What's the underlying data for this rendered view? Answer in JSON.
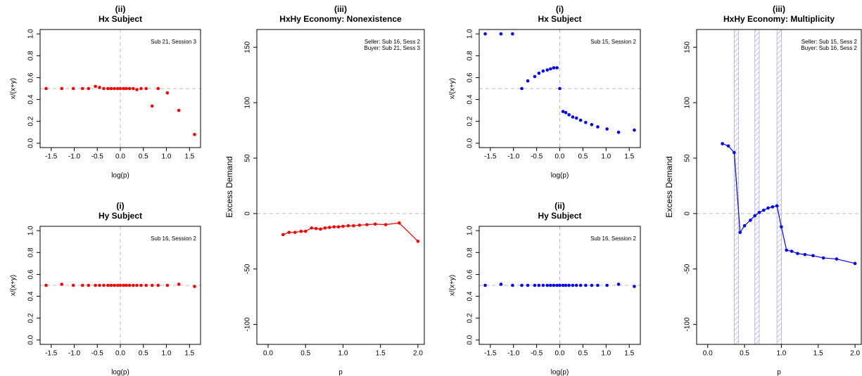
{
  "chart_data": [
    {
      "type": "scatter",
      "title": "(ii)",
      "subtitle": "Hx Subject",
      "annotation": [
        "Sub 21, Session 3"
      ],
      "xlabel": "log(p)",
      "ylabel": "x/(x+y)",
      "color": "#ff0000",
      "x": [
        -1.61,
        -1.27,
        -1.02,
        -0.82,
        -0.69,
        -0.54,
        -0.45,
        -0.36,
        -0.27,
        -0.2,
        -0.13,
        -0.06,
        0,
        0.07,
        0.13,
        0.2,
        0.28,
        0.36,
        0.45,
        0.56,
        0.69,
        0.82,
        1.02,
        1.27,
        1.61
      ],
      "values": [
        0.5,
        0.5,
        0.5,
        0.5,
        0.5,
        0.52,
        0.51,
        0.5,
        0.5,
        0.5,
        0.5,
        0.5,
        0.5,
        0.5,
        0.5,
        0.5,
        0.5,
        0.49,
        0.5,
        0.5,
        0.34,
        0.5,
        0.46,
        0.3,
        0.08
      ],
      "xlim": [
        -1.74,
        1.74
      ],
      "ylim": [
        -0.04,
        1.04
      ],
      "xticks": [
        {
          "value": -1.5,
          "label": "-1.5"
        },
        {
          "value": -1,
          "label": "-1.0"
        },
        -0.5,
        {
          "value": 0,
          "label": "0.0"
        },
        0.5,
        {
          "value": 1,
          "label": "1.0"
        },
        1.5
      ],
      "yticks": [
        {
          "value": 0,
          "label": "0.0"
        },
        0.2,
        0.4,
        0.6,
        0.8,
        {
          "value": 1,
          "label": "1.0"
        }
      ],
      "hline": 0.5,
      "vline": 0
    },
    {
      "type": "scatter",
      "title": "(i)",
      "subtitle": "Hy Subject",
      "annotation": [
        "Sub 16, Session 2"
      ],
      "xlabel": "log(p)",
      "ylabel": "x/(x+y)",
      "color": "#ff0000",
      "x": [
        -1.61,
        -1.27,
        -1.02,
        -0.82,
        -0.69,
        -0.54,
        -0.45,
        -0.36,
        -0.27,
        -0.2,
        -0.13,
        -0.06,
        0,
        0.07,
        0.13,
        0.2,
        0.28,
        0.36,
        0.45,
        0.56,
        0.69,
        0.82,
        1.02,
        1.27,
        1.61
      ],
      "values": [
        0.5,
        0.51,
        0.5,
        0.5,
        0.5,
        0.5,
        0.5,
        0.5,
        0.5,
        0.5,
        0.5,
        0.5,
        0.5,
        0.5,
        0.5,
        0.5,
        0.5,
        0.5,
        0.5,
        0.5,
        0.5,
        0.5,
        0.5,
        0.51,
        0.49
      ],
      "xlim": [
        -1.74,
        1.74
      ],
      "ylim": [
        -0.04,
        1.04
      ],
      "xticks": [
        {
          "value": -1.5,
          "label": "-1.5"
        },
        {
          "value": -1,
          "label": "-1.0"
        },
        -0.5,
        {
          "value": 0,
          "label": "0.0"
        },
        0.5,
        {
          "value": 1,
          "label": "1.0"
        },
        1.5
      ],
      "yticks": [
        {
          "value": 0,
          "label": "0.0"
        },
        0.2,
        0.4,
        0.6,
        0.8,
        {
          "value": 1,
          "label": "1.0"
        }
      ],
      "hline": 0.5,
      "vline": 0
    },
    {
      "type": "line",
      "title": "(iii)",
      "subtitle": "HxHy Economy: Nonexistence",
      "annotation": [
        "Seller: Sub 16, Sess 2",
        "Buyer: Sub 21, Sess 3"
      ],
      "xlabel": "p",
      "ylabel": "Excess Demand",
      "color": "#ff0000",
      "x": [
        0.2,
        0.28,
        0.36,
        0.44,
        0.5,
        0.58,
        0.64,
        0.7,
        0.76,
        0.82,
        0.88,
        0.94,
        1.0,
        1.07,
        1.14,
        1.22,
        1.32,
        1.43,
        1.57,
        1.75,
        2.0
      ],
      "values": [
        -19,
        -17,
        -17,
        -16,
        -16,
        -13,
        -13.5,
        -14,
        -13,
        -12.5,
        -12,
        -12,
        -11.5,
        -11,
        -11,
        -10.5,
        -10,
        -9.5,
        -10,
        -8.5,
        -25
      ],
      "xlim": [
        -0.15,
        2.085
      ],
      "ylim": [
        -118,
        166
      ],
      "xticks": [
        {
          "value": 0,
          "label": "0.0"
        },
        0.5,
        {
          "value": 1,
          "label": "1.0"
        },
        1.5,
        {
          "value": 2,
          "label": "2.0"
        }
      ],
      "yticks": [
        -100,
        -50,
        0,
        50,
        100,
        150
      ],
      "hline": 0
    },
    {
      "type": "scatter",
      "title": "(i)",
      "subtitle": "Hx Subject",
      "annotation": [
        "Sub 15, Session 2"
      ],
      "xlabel": "log(p)",
      "ylabel": "x/(x+y)",
      "color": "#0000ff",
      "x": [
        -1.61,
        -1.27,
        -1.02,
        -0.82,
        -0.69,
        -0.54,
        -0.45,
        -0.36,
        -0.27,
        -0.2,
        -0.13,
        -0.06,
        0,
        0.07,
        0.13,
        0.2,
        0.28,
        0.36,
        0.45,
        0.56,
        0.69,
        0.82,
        1.02,
        1.27,
        1.61
      ],
      "values": [
        1.0,
        1.0,
        1.0,
        0.5,
        0.57,
        0.61,
        0.64,
        0.66,
        0.67,
        0.68,
        0.69,
        0.69,
        0.5,
        0.29,
        0.28,
        0.26,
        0.24,
        0.23,
        0.21,
        0.19,
        0.17,
        0.15,
        0.13,
        0.1,
        0.12
      ],
      "xlim": [
        -1.74,
        1.74
      ],
      "ylim": [
        -0.04,
        1.04
      ],
      "xticks": [
        {
          "value": -1.5,
          "label": "-1.5"
        },
        {
          "value": -1,
          "label": "-1.0"
        },
        -0.5,
        {
          "value": 0,
          "label": "0.0"
        },
        0.5,
        {
          "value": 1,
          "label": "1.0"
        },
        1.5
      ],
      "yticks": [
        {
          "value": 0,
          "label": "0.0"
        },
        0.2,
        0.4,
        0.6,
        0.8,
        {
          "value": 1,
          "label": "1.0"
        }
      ],
      "hline": 0.5,
      "vline": 0
    },
    {
      "type": "scatter",
      "title": "(ii)",
      "subtitle": "Hy Subject",
      "annotation": [
        "Sub 16, Session 2"
      ],
      "xlabel": "log(p)",
      "ylabel": "x/(x+y)",
      "color": "#0000ff",
      "x": [
        -1.61,
        -1.27,
        -1.02,
        -0.82,
        -0.69,
        -0.54,
        -0.45,
        -0.36,
        -0.27,
        -0.2,
        -0.13,
        -0.06,
        0,
        0.07,
        0.13,
        0.2,
        0.28,
        0.36,
        0.45,
        0.56,
        0.69,
        0.82,
        1.02,
        1.27,
        1.61
      ],
      "values": [
        0.5,
        0.51,
        0.5,
        0.5,
        0.5,
        0.5,
        0.5,
        0.5,
        0.5,
        0.5,
        0.5,
        0.5,
        0.5,
        0.5,
        0.5,
        0.5,
        0.5,
        0.5,
        0.5,
        0.5,
        0.5,
        0.5,
        0.5,
        0.51,
        0.49
      ],
      "xlim": [
        -1.74,
        1.74
      ],
      "ylim": [
        -0.04,
        1.04
      ],
      "xticks": [
        {
          "value": -1.5,
          "label": "-1.5"
        },
        {
          "value": -1,
          "label": "-1.0"
        },
        -0.5,
        {
          "value": 0,
          "label": "0.0"
        },
        0.5,
        {
          "value": 1,
          "label": "1.0"
        },
        1.5
      ],
      "yticks": [
        {
          "value": 0,
          "label": "0.0"
        },
        0.2,
        0.4,
        0.6,
        0.8,
        {
          "value": 1,
          "label": "1.0"
        }
      ],
      "hline": 0.5,
      "vline": 0
    },
    {
      "type": "line",
      "title": "(iii)",
      "subtitle": "HxHy Economy: Multiplicity",
      "annotation": [
        "Seller: Sub 15, Sess 2",
        "Buyer: Sub 16, Sess 2"
      ],
      "xlabel": "p",
      "ylabel": "Excess Demand",
      "color": "#0000ff",
      "x": [
        0.2,
        0.28,
        0.36,
        0.44,
        0.5,
        0.58,
        0.64,
        0.7,
        0.76,
        0.82,
        0.88,
        0.94,
        1.0,
        1.07,
        1.14,
        1.22,
        1.32,
        1.43,
        1.57,
        1.75,
        2.0
      ],
      "values": [
        63,
        61,
        55,
        -17,
        -11,
        -6,
        -2,
        1,
        3,
        5,
        6,
        7,
        -12,
        -33,
        -34,
        -36,
        -37,
        -38,
        -40,
        -41,
        -45
      ],
      "bands": [
        [
          0.36,
          0.42
        ],
        [
          0.64,
          0.7
        ],
        [
          0.94,
          1.0
        ]
      ],
      "xlim": [
        -0.15,
        2.085
      ],
      "ylim": [
        -118,
        166
      ],
      "xticks": [
        {
          "value": 0,
          "label": "0.0"
        },
        0.5,
        {
          "value": 1,
          "label": "1.0"
        },
        1.5,
        {
          "value": 2,
          "label": "2.0"
        }
      ],
      "yticks": [
        -100,
        -50,
        0,
        50,
        100,
        150
      ],
      "hline": 0
    }
  ]
}
